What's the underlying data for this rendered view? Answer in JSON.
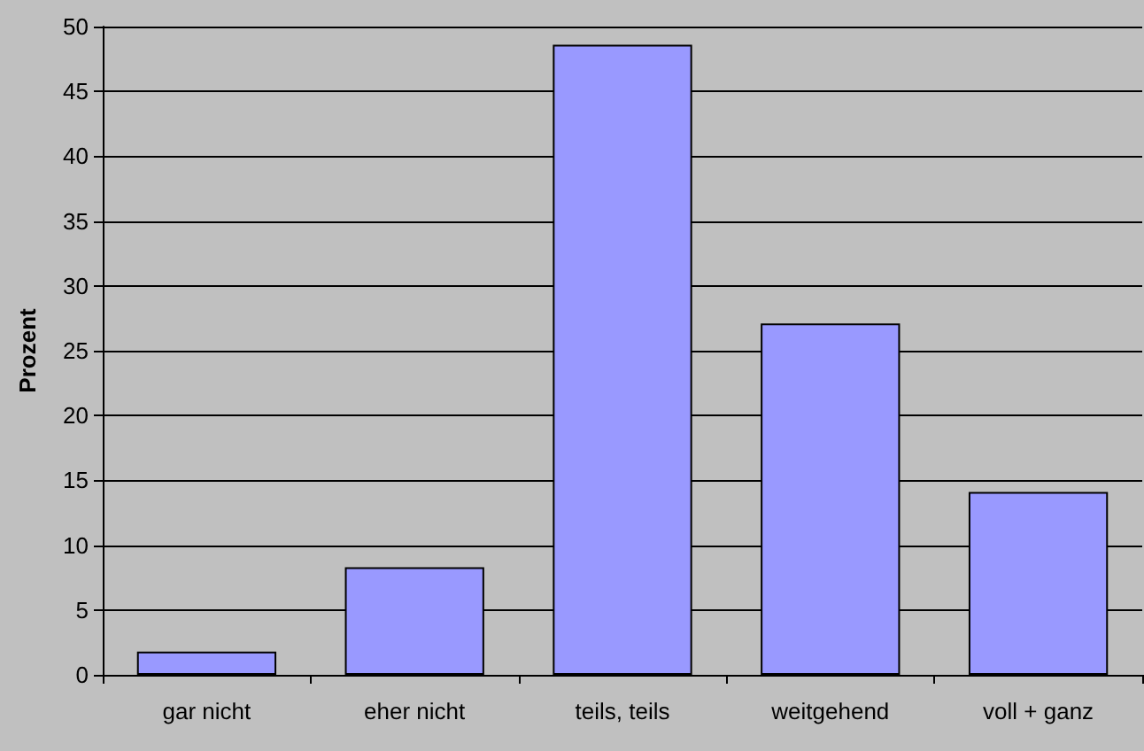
{
  "chart_data": {
    "type": "bar",
    "ylabel": "Prozent",
    "categories": [
      "gar nicht",
      "eher nicht",
      "teils, teils",
      "weitgehend",
      "voll + ganz"
    ],
    "values": [
      1.8,
      8.3,
      48.6,
      27.1,
      14.1
    ],
    "color": "#9999ff",
    "ylim": [
      0,
      50
    ],
    "yticks": [
      0,
      5,
      10,
      15,
      20,
      25,
      30,
      35,
      40,
      45,
      50
    ],
    "grid": "y"
  }
}
